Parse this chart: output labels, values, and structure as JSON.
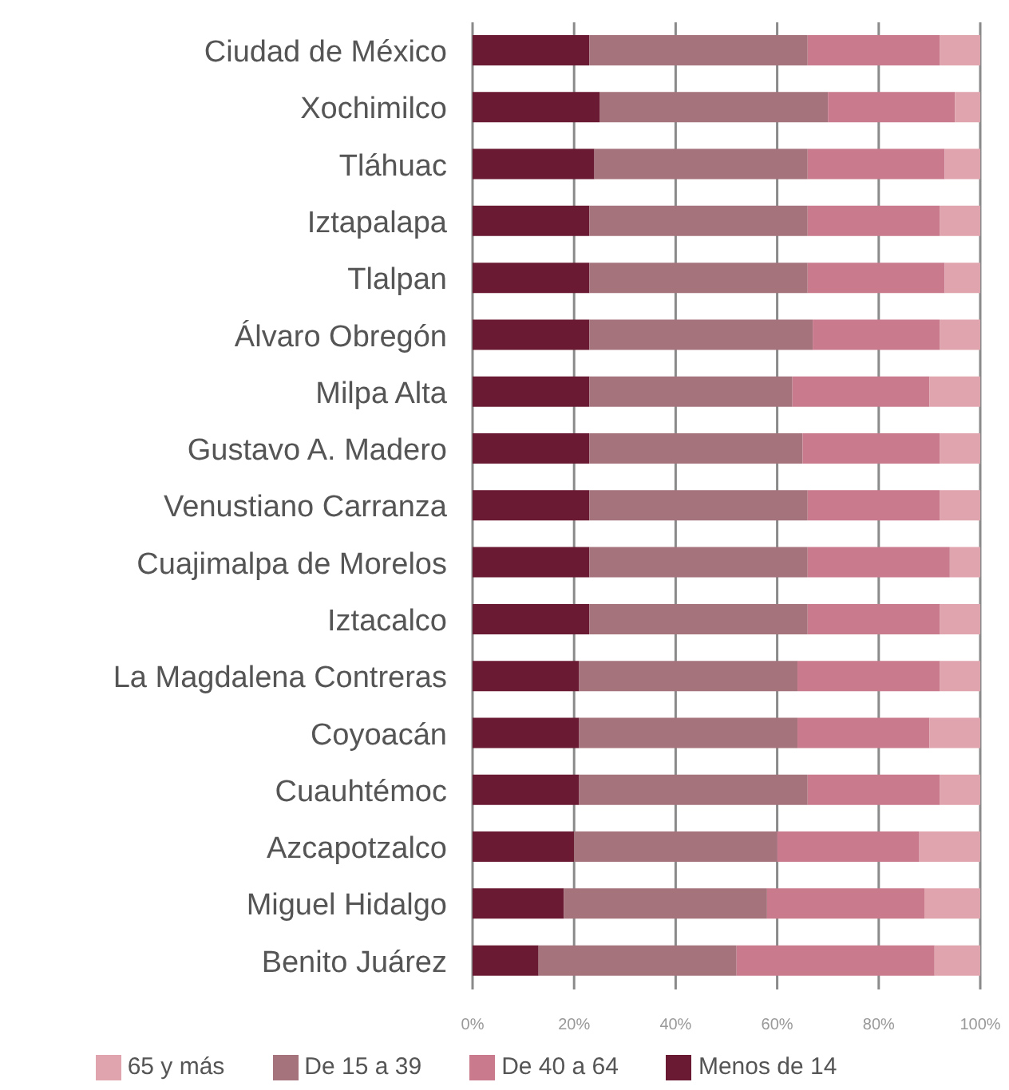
{
  "chart_data": {
    "type": "bar",
    "orientation": "horizontal",
    "stacked": true,
    "categories": [
      "Ciudad de México",
      "Xochimilco",
      "Tláhuac",
      "Iztapalapa",
      "Tlalpan",
      "Álvaro Obregón",
      "Milpa Alta",
      "Gustavo A. Madero",
      "Venustiano Carranza",
      "Cuajimalpa de Morelos",
      "Iztacalco",
      "La Magdalena Contreras",
      "Coyoacán",
      "Cuauhtémoc",
      "Azcapotzalco",
      "Miguel Hidalgo",
      "Benito Juárez"
    ],
    "series": [
      {
        "name": "Menos de 14",
        "color": "#6b1a33",
        "values": [
          23,
          25,
          24,
          23,
          23,
          23,
          23,
          23,
          23,
          23,
          23,
          21,
          21,
          21,
          20,
          18,
          13
        ]
      },
      {
        "name": "De 15 a 39",
        "color": "#a5737c",
        "values": [
          43,
          45,
          42,
          43,
          43,
          44,
          40,
          42,
          43,
          43,
          43,
          43,
          43,
          45,
          40,
          40,
          39
        ]
      },
      {
        "name": "De 40 a 64",
        "color": "#c97a8d",
        "values": [
          26,
          25,
          27,
          26,
          27,
          25,
          27,
          27,
          26,
          28,
          26,
          28,
          26,
          26,
          28,
          31,
          39
        ]
      },
      {
        "name": "65 y más",
        "color": "#dfa4ad",
        "values": [
          8,
          5,
          7,
          8,
          7,
          8,
          10,
          8,
          8,
          6,
          8,
          8,
          10,
          8,
          12,
          11,
          9
        ]
      }
    ],
    "xlim": [
      0,
      100
    ],
    "xticks": [
      {
        "value": 0,
        "label": "0%"
      },
      {
        "value": 20,
        "label": "20%"
      },
      {
        "value": 40,
        "label": "40%"
      },
      {
        "value": 60,
        "label": "60%"
      },
      {
        "value": 80,
        "label": "80%"
      },
      {
        "value": 100,
        "label": "100%"
      }
    ],
    "grid": "x",
    "legend": "bottom"
  }
}
